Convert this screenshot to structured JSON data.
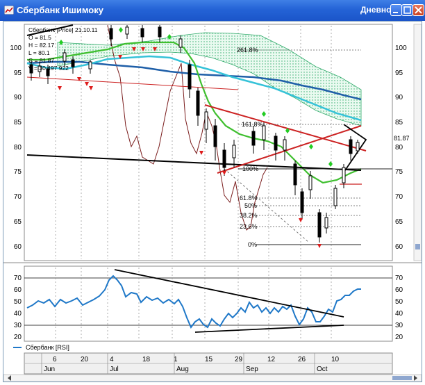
{
  "window": {
    "title": "Сбербанк Ишимоку",
    "mode": "Дневной"
  },
  "price_panel": {
    "y_ticks": [
      "100",
      "95",
      "90",
      "85",
      "80",
      "75",
      "70",
      "65",
      "60"
    ],
    "header_lines": [
      "Сбербанк [Price] 21.10.11",
      "O = 81.5",
      "H = 82.17",
      "L = 80.1",
      "C = 81.87",
      "V = 30 497 922"
    ],
    "last_price": "81.87",
    "fib_labels": [
      "261.8%",
      "161.8%",
      "100%",
      "61.8%",
      "50%",
      "38.2%",
      "23.6%",
      "0%"
    ]
  },
  "rsi_panel": {
    "y_ticks": [
      "70",
      "60",
      "50",
      "40",
      "30",
      "20"
    ],
    "legend": "Сбербанк [RSI]"
  },
  "time_axis": {
    "days": [
      "6",
      "20",
      "4",
      "18",
      "1",
      "15",
      "29",
      "12",
      "26",
      "10"
    ],
    "months": [
      "Jun",
      "Jul",
      "Aug",
      "Sep",
      "Oct"
    ]
  },
  "colors": {
    "titlebar": "#2463d6",
    "rsi_line": "#1f78c8",
    "trend_black": "#000000",
    "trend_red": "#cc2222",
    "cloud": "#2faa6a",
    "kijun": "#35c2d8",
    "senkou_b": "#1f5fa8",
    "chikou": "#7a1c1c",
    "tenkan": "#3fbf2f",
    "arrow_down": "#dd1a1a",
    "arrow_up": "#22cc22"
  },
  "icons": {
    "app": "chart-window-icon",
    "minimize": "minimize-icon",
    "maximize": "maximize-icon",
    "close": "close-icon"
  }
}
